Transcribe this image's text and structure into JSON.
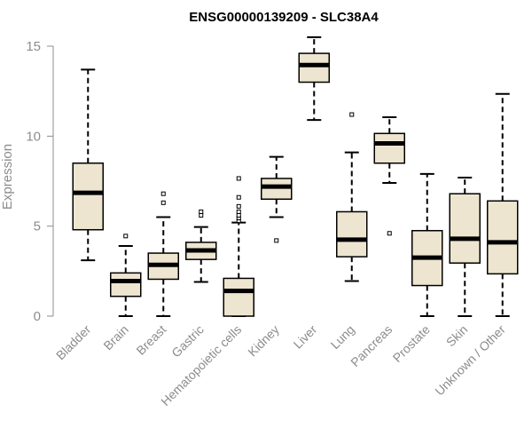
{
  "chart_data": {
    "type": "box",
    "title": "ENSG00000139209 - SLC38A4",
    "xlabel": "",
    "ylabel": "Expression",
    "ylim": [
      0,
      15
    ],
    "yticks": [
      0,
      5,
      10,
      15
    ],
    "colors": {
      "box_fill": "#ede5d0",
      "box_stroke": "#000000",
      "axis": "#8c8c8c"
    },
    "categories": [
      "Bladder",
      "Brain",
      "Breast",
      "Gastric",
      "Hematopoietic cells",
      "Kidney",
      "Liver",
      "Lung",
      "Pancreas",
      "Prostate",
      "Skin",
      "Unknown / Other"
    ],
    "boxes": [
      {
        "whisker_low": 3.1,
        "q1": 4.8,
        "median": 6.85,
        "q3": 8.5,
        "whisker_high": 13.7,
        "outliers": []
      },
      {
        "whisker_low": 0.0,
        "q1": 1.1,
        "median": 1.95,
        "q3": 2.4,
        "whisker_high": 3.9,
        "outliers": [
          4.45
        ]
      },
      {
        "whisker_low": 0.0,
        "q1": 2.05,
        "median": 2.85,
        "q3": 3.5,
        "whisker_high": 5.5,
        "outliers": [
          6.3,
          6.8
        ]
      },
      {
        "whisker_low": 1.9,
        "q1": 3.15,
        "median": 3.65,
        "q3": 4.1,
        "whisker_high": 4.95,
        "outliers": [
          5.6,
          5.8
        ]
      },
      {
        "whisker_low": 0.0,
        "q1": 0.0,
        "median": 1.4,
        "q3": 2.1,
        "whisker_high": 5.2,
        "outliers": [
          5.3,
          5.45,
          5.6,
          5.8,
          6.1,
          6.6,
          7.65
        ]
      },
      {
        "whisker_low": 5.5,
        "q1": 6.5,
        "median": 7.2,
        "q3": 7.65,
        "whisker_high": 8.85,
        "outliers": [
          4.2
        ]
      },
      {
        "whisker_low": 10.9,
        "q1": 13.0,
        "median": 13.95,
        "q3": 14.6,
        "whisker_high": 15.5,
        "outliers": []
      },
      {
        "whisker_low": 1.95,
        "q1": 3.3,
        "median": 4.25,
        "q3": 5.8,
        "whisker_high": 9.1,
        "outliers": [
          11.2
        ]
      },
      {
        "whisker_low": 7.4,
        "q1": 8.5,
        "median": 9.6,
        "q3": 10.15,
        "whisker_high": 11.05,
        "outliers": [
          4.6
        ]
      },
      {
        "whisker_low": 0.0,
        "q1": 1.7,
        "median": 3.25,
        "q3": 4.75,
        "whisker_high": 7.9,
        "outliers": []
      },
      {
        "whisker_low": 0.0,
        "q1": 2.95,
        "median": 4.3,
        "q3": 6.8,
        "whisker_high": 7.7,
        "outliers": []
      },
      {
        "whisker_low": 0.0,
        "q1": 2.35,
        "median": 4.1,
        "q3": 6.4,
        "whisker_high": 12.35,
        "outliers": []
      }
    ]
  }
}
